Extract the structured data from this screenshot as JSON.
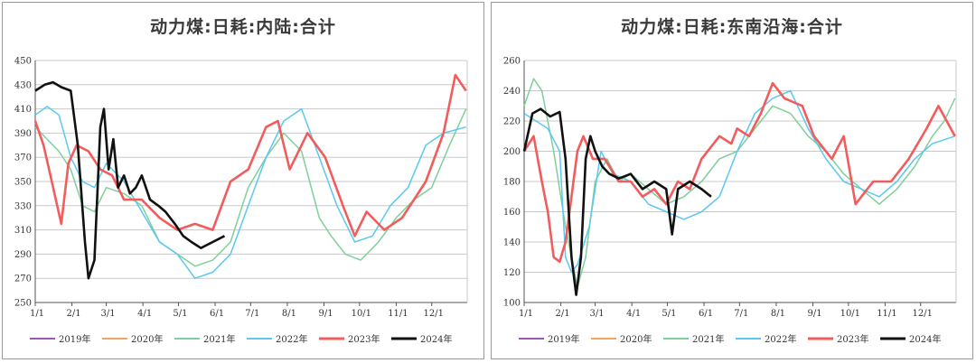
{
  "chart_data": [
    {
      "type": "line",
      "title": "动力煤:日耗:内陆:合计",
      "x_ticks": [
        "1/1",
        "2/1",
        "3/1",
        "4/1",
        "5/1",
        "6/1",
        "7/1",
        "8/1",
        "9/1",
        "10/1",
        "11/1",
        "12/1"
      ],
      "ylim": [
        250,
        450
      ],
      "y_ticks": [
        250,
        270,
        290,
        310,
        330,
        350,
        370,
        390,
        410,
        430,
        450
      ],
      "grid": "horizontal",
      "legend_position": "bottom",
      "series": [
        {
          "name": "2019年",
          "color": "#9b59b6",
          "days": [],
          "values": []
        },
        {
          "name": "2020年",
          "color": "#f4a460",
          "days": [],
          "values": []
        },
        {
          "name": "2021年",
          "color": "#7fcf9a",
          "days": [
            0,
            10,
            20,
            30,
            40,
            50,
            60,
            75,
            90,
            105,
            120,
            135,
            150,
            165,
            180,
            195,
            210,
            225,
            240,
            250,
            262,
            275,
            290,
            305,
            320,
            335,
            350,
            364
          ],
          "values": [
            395,
            385,
            375,
            360,
            330,
            325,
            345,
            340,
            330,
            300,
            290,
            280,
            285,
            300,
            345,
            370,
            390,
            375,
            320,
            305,
            290,
            285,
            300,
            320,
            335,
            345,
            380,
            410
          ]
        },
        {
          "name": "2022年",
          "color": "#5bc8f0",
          "days": [
            0,
            10,
            20,
            30,
            40,
            50,
            60,
            75,
            90,
            105,
            120,
            135,
            150,
            165,
            180,
            195,
            210,
            225,
            240,
            255,
            270,
            285,
            300,
            315,
            330,
            345,
            364
          ],
          "values": [
            405,
            412,
            405,
            370,
            350,
            345,
            365,
            350,
            325,
            300,
            290,
            270,
            275,
            290,
            330,
            370,
            400,
            410,
            370,
            330,
            300,
            305,
            330,
            345,
            380,
            390,
            395
          ]
        },
        {
          "name": "2023年",
          "color": "#f25c5c",
          "days": [
            0,
            7,
            14,
            22,
            28,
            35,
            45,
            55,
            65,
            75,
            90,
            105,
            120,
            135,
            150,
            165,
            180,
            195,
            205,
            215,
            230,
            245,
            260,
            270,
            280,
            295,
            310,
            330,
            345,
            355,
            364
          ],
          "values": [
            400,
            380,
            350,
            315,
            365,
            380,
            375,
            360,
            355,
            335,
            335,
            320,
            310,
            315,
            310,
            350,
            360,
            395,
            400,
            360,
            390,
            370,
            330,
            305,
            325,
            310,
            320,
            350,
            390,
            438,
            425
          ]
        },
        {
          "name": "2024年",
          "color": "#111111",
          "days": [
            0,
            8,
            15,
            22,
            30,
            36,
            42,
            45,
            50,
            55,
            58,
            62,
            66,
            70,
            75,
            80,
            85,
            90,
            97,
            104,
            110,
            118,
            125,
            132,
            140,
            150,
            160
          ],
          "values": [
            425,
            430,
            432,
            428,
            425,
            380,
            300,
            270,
            285,
            395,
            410,
            360,
            385,
            345,
            355,
            340,
            345,
            355,
            335,
            330,
            325,
            315,
            305,
            300,
            295,
            300,
            305
          ]
        }
      ]
    },
    {
      "type": "line",
      "title": "动力煤:日耗:东南沿海:合计",
      "x_ticks": [
        "1/1",
        "2/1",
        "3/1",
        "4/1",
        "5/1",
        "6/1",
        "7/1",
        "8/1",
        "9/1",
        "10/1",
        "11/1",
        "12/1"
      ],
      "ylim": [
        100,
        260
      ],
      "y_ticks": [
        100,
        120,
        140,
        160,
        180,
        200,
        220,
        240,
        260
      ],
      "grid": "horizontal",
      "legend_position": "bottom",
      "series": [
        {
          "name": "2019年",
          "color": "#9b59b6",
          "days": [],
          "values": []
        },
        {
          "name": "2020年",
          "color": "#f4a460",
          "days": [],
          "values": []
        },
        {
          "name": "2021年",
          "color": "#7fcf9a",
          "days": [
            0,
            8,
            15,
            25,
            35,
            45,
            52,
            60,
            70,
            80,
            90,
            105,
            120,
            135,
            150,
            165,
            180,
            195,
            210,
            225,
            240,
            255,
            270,
            285,
            300,
            315,
            330,
            345,
            355,
            364
          ],
          "values": [
            230,
            248,
            240,
            200,
            150,
            110,
            130,
            180,
            195,
            180,
            185,
            175,
            165,
            170,
            180,
            195,
            200,
            215,
            230,
            225,
            210,
            200,
            185,
            175,
            165,
            175,
            190,
            210,
            220,
            235
          ]
        },
        {
          "name": "2022年",
          "color": "#5bc8f0",
          "days": [
            0,
            10,
            20,
            30,
            35,
            40,
            45,
            55,
            65,
            75,
            90,
            105,
            120,
            135,
            150,
            165,
            180,
            195,
            210,
            225,
            240,
            255,
            270,
            285,
            300,
            315,
            330,
            345,
            364
          ],
          "values": [
            225,
            220,
            215,
            200,
            130,
            120,
            125,
            150,
            200,
            185,
            180,
            165,
            160,
            155,
            160,
            170,
            200,
            225,
            235,
            240,
            215,
            195,
            180,
            175,
            170,
            180,
            195,
            205,
            210
          ]
        },
        {
          "name": "2023年",
          "color": "#f25c5c",
          "days": [
            0,
            8,
            15,
            20,
            25,
            30,
            35,
            40,
            45,
            50,
            58,
            68,
            80,
            90,
            100,
            110,
            120,
            130,
            140,
            150,
            165,
            175,
            180,
            190,
            200,
            210,
            220,
            235,
            245,
            260,
            270,
            280,
            295,
            310,
            325,
            340,
            350,
            364
          ],
          "values": [
            200,
            210,
            180,
            160,
            130,
            127,
            140,
            170,
            200,
            210,
            195,
            195,
            180,
            180,
            170,
            175,
            165,
            180,
            175,
            195,
            210,
            205,
            215,
            210,
            225,
            245,
            235,
            230,
            210,
            195,
            210,
            165,
            180,
            180,
            195,
            215,
            230,
            210
          ]
        },
        {
          "name": "2024年",
          "color": "#111111",
          "days": [
            0,
            7,
            14,
            22,
            30,
            35,
            40,
            44,
            48,
            52,
            56,
            60,
            66,
            72,
            80,
            90,
            100,
            110,
            120,
            125,
            130,
            140,
            150,
            158
          ],
          "values": [
            200,
            225,
            228,
            223,
            226,
            195,
            130,
            105,
            130,
            195,
            210,
            200,
            190,
            185,
            182,
            185,
            175,
            180,
            175,
            145,
            175,
            180,
            175,
            170
          ]
        }
      ]
    }
  ]
}
